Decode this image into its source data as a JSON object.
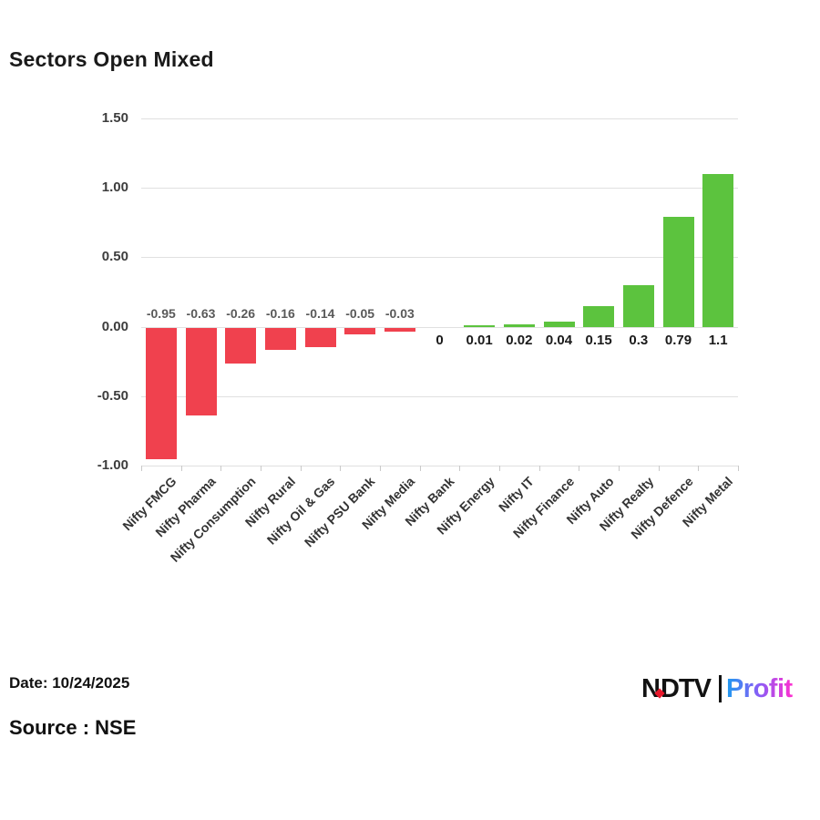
{
  "title": "Sectors Open Mixed",
  "footer": {
    "date": "Date: 10/24/2025",
    "source": "Source : NSE"
  },
  "logo": {
    "n": "N",
    "dtv": "DTV",
    "profit": "Profit"
  },
  "theme": {
    "negative_bar": "#F0414E",
    "positive_bar": "#5CC33E",
    "gridline": "#E0E0E0",
    "ndtv_dot": "#E8192C",
    "profit_gradient": [
      "#1E9BF0",
      "#8A5CF6",
      "#FF2FD0"
    ]
  },
  "chart_data": {
    "type": "bar",
    "title": "Sectors Open Mixed",
    "xlabel": "",
    "ylabel": "",
    "categories": [
      "Nifty FMCG",
      "Nifty Pharma",
      "Nifty Consumption",
      "Nifty Rural",
      "Nifty Oil & Gas",
      "Nifty PSU Bank",
      "Nifty Media",
      "Nifty Bank",
      "Nifty Energy",
      "Nifty IT",
      "Nifty Finance",
      "Nifty Auto",
      "Nifty Realty",
      "Nifty Defence",
      "Nifty Metal"
    ],
    "values": [
      -0.95,
      -0.63,
      -0.26,
      -0.16,
      -0.14,
      -0.05,
      -0.03,
      0,
      0.01,
      0.02,
      0.04,
      0.15,
      0.3,
      0.79,
      1.1
    ],
    "value_labels": [
      "-0.95",
      "-0.63",
      "-0.26",
      "-0.16",
      "-0.14",
      "-0.05",
      "-0.03",
      "0",
      "0.01",
      "0.02",
      "0.04",
      "0.15",
      "0.3",
      "0.79",
      "1.1"
    ],
    "ylim": [
      -1.0,
      1.5
    ],
    "yticks": [
      1.5,
      1.0,
      0.5,
      0.0,
      -0.5,
      -1.0
    ],
    "ytick_labels": [
      "1.50",
      "1.00",
      "0.50",
      "0.00",
      "-0.50",
      "-1.00"
    ],
    "grid": true,
    "legend": false
  }
}
